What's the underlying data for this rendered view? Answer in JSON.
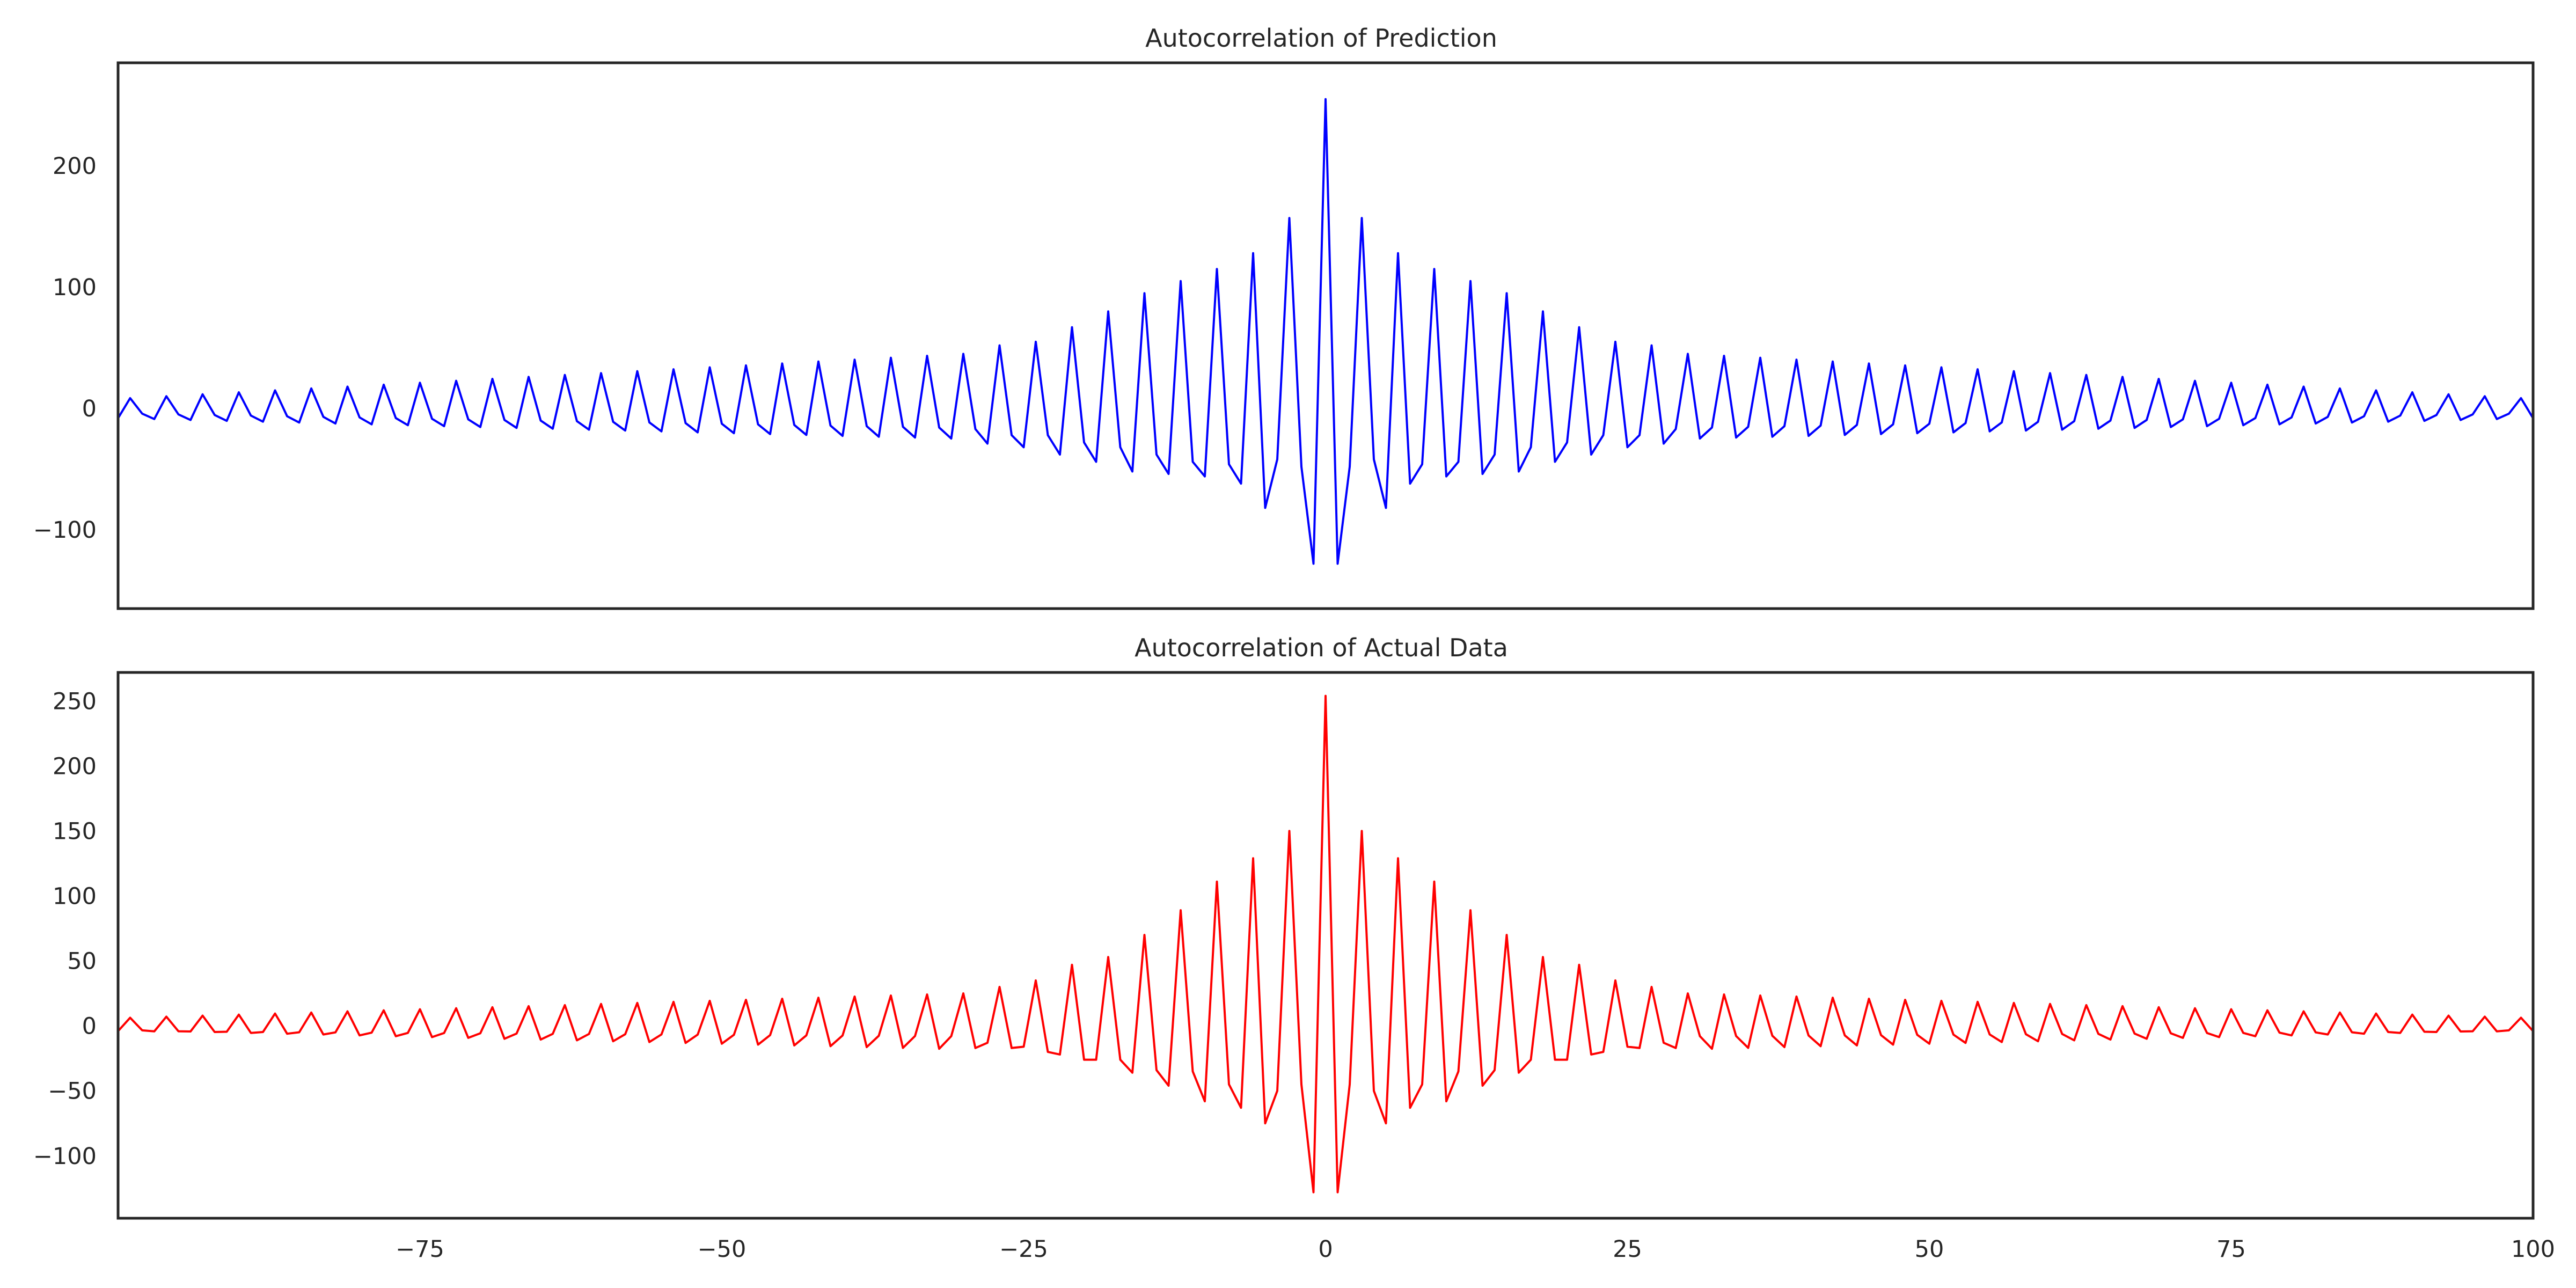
{
  "chart_data": [
    {
      "type": "line",
      "title": "Autocorrelation of Prediction",
      "xlabel": "",
      "ylabel": "",
      "xlim": [
        -100,
        100
      ],
      "ylim": [
        -165,
        285
      ],
      "x_ticks": [],
      "y_ticks": [
        -100,
        0,
        100,
        200
      ],
      "y_tick_labels": [
        "−100",
        "0",
        "100",
        "200"
      ],
      "grid": false,
      "series": [
        {
          "color": "#0000ff",
          "center": 255,
          "near_lags": [
            [
              1,
              -128
            ],
            [
              2,
              -48
            ],
            [
              3,
              157
            ],
            [
              4,
              -42
            ],
            [
              5,
              -82
            ],
            [
              6,
              128
            ],
            [
              7,
              -62
            ],
            [
              8,
              -46
            ],
            [
              9,
              115
            ],
            [
              10,
              -56
            ],
            [
              11,
              -44
            ],
            [
              12,
              105
            ],
            [
              13,
              -54
            ],
            [
              14,
              -38
            ],
            [
              15,
              95
            ],
            [
              16,
              -52
            ],
            [
              17,
              -32
            ],
            [
              18,
              80
            ],
            [
              19,
              -44
            ],
            [
              20,
              -28
            ],
            [
              21,
              67
            ],
            [
              22,
              -38
            ],
            [
              23,
              -22
            ],
            [
              24,
              55
            ],
            [
              25,
              -32
            ],
            [
              26,
              -22
            ],
            [
              27,
              52
            ],
            [
              28,
              -29
            ],
            [
              29,
              -17
            ]
          ],
          "far_pattern": {
            "start_lag": 30,
            "period": 3,
            "peak_start": 45,
            "peak_end": 8,
            "trough1_start": -25,
            "trough1_end": -8,
            "trough2_start": -16,
            "trough2_end": -4
          }
        }
      ]
    },
    {
      "type": "line",
      "title": "Autocorrelation of Actual Data",
      "xlabel": "",
      "ylabel": "",
      "xlim": [
        -100,
        100
      ],
      "ylim": [
        -148,
        272
      ],
      "x_ticks": [
        -75,
        -50,
        -25,
        0,
        25,
        50,
        75,
        100
      ],
      "x_tick_labels": [
        "−75",
        "−50",
        "−25",
        "0",
        "25",
        "50",
        "75",
        "100"
      ],
      "y_ticks": [
        -100,
        -50,
        0,
        50,
        100,
        150,
        200,
        250
      ],
      "y_tick_labels": [
        "−100",
        "−50",
        "0",
        "50",
        "100",
        "150",
        "200",
        "250"
      ],
      "grid": false,
      "series": [
        {
          "color": "#ff0000",
          "center": 254,
          "near_lags": [
            [
              1,
              -128
            ],
            [
              2,
              -45
            ],
            [
              3,
              150
            ],
            [
              4,
              -50
            ],
            [
              5,
              -75
            ],
            [
              6,
              129
            ],
            [
              7,
              -63
            ],
            [
              8,
              -45
            ],
            [
              9,
              111
            ],
            [
              10,
              -58
            ],
            [
              11,
              -35
            ],
            [
              12,
              89
            ],
            [
              13,
              -46
            ],
            [
              14,
              -34
            ],
            [
              15,
              70
            ],
            [
              16,
              -36
            ],
            [
              17,
              -26
            ],
            [
              18,
              53
            ],
            [
              19,
              -26
            ],
            [
              20,
              -26
            ],
            [
              21,
              47
            ],
            [
              22,
              -22
            ],
            [
              23,
              -20
            ],
            [
              24,
              35
            ],
            [
              25,
              -16
            ],
            [
              26,
              -17
            ],
            [
              27,
              30
            ],
            [
              28,
              -13
            ],
            [
              29,
              -17
            ]
          ],
          "far_pattern": {
            "start_lag": 30,
            "period": 3,
            "peak_start": 25,
            "peak_end": 6,
            "trough1_start": -8,
            "trough1_end": -4,
            "trough2_start": -18,
            "trough2_end": -3
          }
        }
      ]
    }
  ]
}
